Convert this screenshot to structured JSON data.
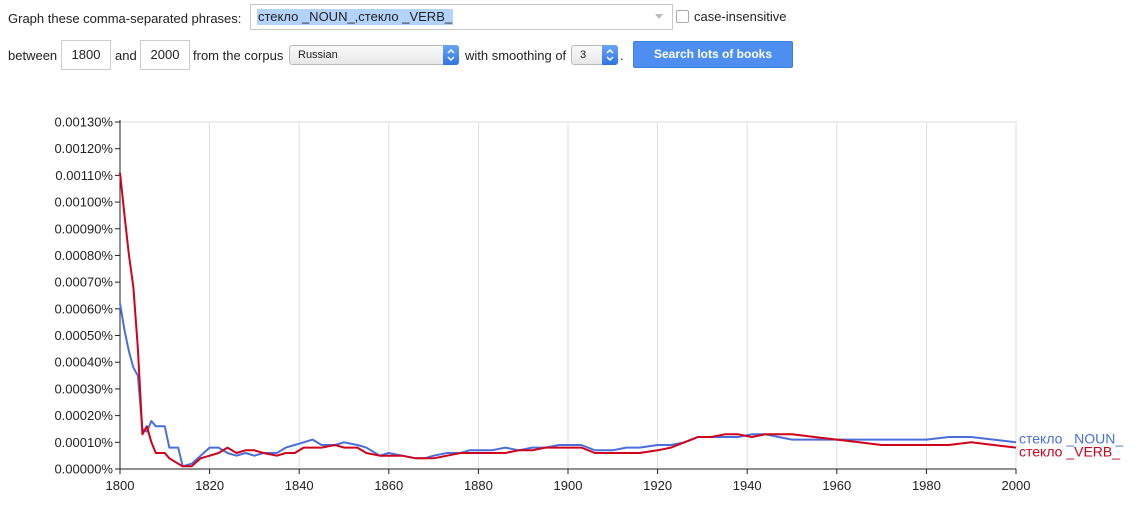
{
  "form": {
    "graph_label": "Graph these comma-separated phrases:",
    "phrases_value": "стекло _NOUN_,стекло _VERB_",
    "case_insensitive_label": "case-insensitive",
    "between_label": "between",
    "start_year": "1800",
    "and_label": "and",
    "end_year": "2000",
    "corpus_label": "from the corpus",
    "corpus_value": "Russian",
    "smoothing_label": "with smoothing of",
    "smoothing_value": "3",
    "period": ".",
    "search_button": "Search lots of books"
  },
  "colors": {
    "noun": "#4a6fdb",
    "verb": "#d0021b",
    "grid": "#dddddd",
    "button": "#4d8ef0"
  },
  "chart_data": {
    "type": "line",
    "xlim": [
      1800,
      2000
    ],
    "ylim": [
      0,
      0.0013
    ],
    "x_ticks": [
      1800,
      1820,
      1840,
      1860,
      1880,
      1900,
      1920,
      1940,
      1960,
      1980,
      2000
    ],
    "y_ticks": [
      0,
      0.0001,
      0.0002,
      0.0003,
      0.0004,
      0.0005,
      0.0006,
      0.0007,
      0.0008,
      0.0009,
      0.001,
      0.0011,
      0.0012,
      0.0013
    ],
    "y_tick_labels": [
      "0.00000%",
      "0.00010%",
      "0.00020%",
      "0.00030%",
      "0.00040%",
      "0.00050%",
      "0.00060%",
      "0.00070%",
      "0.00080%",
      "0.00090%",
      "0.00100%",
      "0.00110%",
      "0.00120%",
      "0.00130%"
    ],
    "grid": true,
    "series": [
      {
        "name": "стекло _NOUN_",
        "color": "#4a6fdb",
        "points": [
          [
            1800,
            0.00062
          ],
          [
            1801,
            0.00052
          ],
          [
            1802,
            0.00044
          ],
          [
            1803,
            0.00038
          ],
          [
            1804,
            0.00035
          ],
          [
            1805,
            0.00015
          ],
          [
            1806,
            0.00014
          ],
          [
            1807,
            0.00018
          ],
          [
            1808,
            0.00016
          ],
          [
            1810,
            0.00016
          ],
          [
            1811,
            8e-05
          ],
          [
            1813,
            8e-05
          ],
          [
            1814,
            1e-05
          ],
          [
            1816,
            2e-05
          ],
          [
            1818,
            5e-05
          ],
          [
            1820,
            8e-05
          ],
          [
            1822,
            8e-05
          ],
          [
            1824,
            6e-05
          ],
          [
            1826,
            5e-05
          ],
          [
            1828,
            6e-05
          ],
          [
            1830,
            5e-05
          ],
          [
            1832,
            6e-05
          ],
          [
            1835,
            6e-05
          ],
          [
            1837,
            8e-05
          ],
          [
            1839,
            9e-05
          ],
          [
            1841,
            0.0001
          ],
          [
            1843,
            0.00011
          ],
          [
            1845,
            9e-05
          ],
          [
            1848,
            9e-05
          ],
          [
            1850,
            0.0001
          ],
          [
            1853,
            9e-05
          ],
          [
            1855,
            8e-05
          ],
          [
            1858,
            5e-05
          ],
          [
            1860,
            6e-05
          ],
          [
            1863,
            5e-05
          ],
          [
            1866,
            4e-05
          ],
          [
            1868,
            4e-05
          ],
          [
            1870,
            5e-05
          ],
          [
            1873,
            6e-05
          ],
          [
            1876,
            6e-05
          ],
          [
            1878,
            7e-05
          ],
          [
            1880,
            7e-05
          ],
          [
            1883,
            7e-05
          ],
          [
            1886,
            8e-05
          ],
          [
            1889,
            7e-05
          ],
          [
            1892,
            8e-05
          ],
          [
            1895,
            8e-05
          ],
          [
            1898,
            9e-05
          ],
          [
            1900,
            9e-05
          ],
          [
            1903,
            9e-05
          ],
          [
            1906,
            7e-05
          ],
          [
            1910,
            7e-05
          ],
          [
            1913,
            8e-05
          ],
          [
            1916,
            8e-05
          ],
          [
            1920,
            9e-05
          ],
          [
            1923,
            9e-05
          ],
          [
            1926,
            0.0001
          ],
          [
            1929,
            0.00012
          ],
          [
            1932,
            0.00012
          ],
          [
            1935,
            0.00012
          ],
          [
            1938,
            0.00012
          ],
          [
            1941,
            0.00013
          ],
          [
            1944,
            0.00013
          ],
          [
            1947,
            0.00012
          ],
          [
            1950,
            0.00011
          ],
          [
            1955,
            0.00011
          ],
          [
            1960,
            0.00011
          ],
          [
            1965,
            0.00011
          ],
          [
            1970,
            0.00011
          ],
          [
            1975,
            0.00011
          ],
          [
            1980,
            0.00011
          ],
          [
            1985,
            0.00012
          ],
          [
            1990,
            0.00012
          ],
          [
            1995,
            0.00011
          ],
          [
            2000,
            0.0001
          ]
        ]
      },
      {
        "name": "стекло _VERB_",
        "color": "#d0021b",
        "points": [
          [
            1800,
            0.00111
          ],
          [
            1801,
            0.00095
          ],
          [
            1802,
            0.0008
          ],
          [
            1803,
            0.00068
          ],
          [
            1804,
            0.00045
          ],
          [
            1805,
            0.00013
          ],
          [
            1806,
            0.00016
          ],
          [
            1807,
            0.0001
          ],
          [
            1808,
            6e-05
          ],
          [
            1810,
            6e-05
          ],
          [
            1811,
            4e-05
          ],
          [
            1813,
            2e-05
          ],
          [
            1814,
            1e-05
          ],
          [
            1816,
            1e-05
          ],
          [
            1818,
            4e-05
          ],
          [
            1820,
            5e-05
          ],
          [
            1822,
            6e-05
          ],
          [
            1824,
            8e-05
          ],
          [
            1826,
            6e-05
          ],
          [
            1828,
            7e-05
          ],
          [
            1830,
            7e-05
          ],
          [
            1832,
            6e-05
          ],
          [
            1835,
            5e-05
          ],
          [
            1837,
            6e-05
          ],
          [
            1839,
            6e-05
          ],
          [
            1841,
            8e-05
          ],
          [
            1843,
            8e-05
          ],
          [
            1845,
            8e-05
          ],
          [
            1848,
            9e-05
          ],
          [
            1850,
            8e-05
          ],
          [
            1853,
            8e-05
          ],
          [
            1855,
            6e-05
          ],
          [
            1858,
            5e-05
          ],
          [
            1860,
            5e-05
          ],
          [
            1863,
            5e-05
          ],
          [
            1866,
            4e-05
          ],
          [
            1868,
            4e-05
          ],
          [
            1870,
            4e-05
          ],
          [
            1873,
            5e-05
          ],
          [
            1876,
            6e-05
          ],
          [
            1878,
            6e-05
          ],
          [
            1880,
            6e-05
          ],
          [
            1883,
            6e-05
          ],
          [
            1886,
            6e-05
          ],
          [
            1889,
            7e-05
          ],
          [
            1892,
            7e-05
          ],
          [
            1895,
            8e-05
          ],
          [
            1898,
            8e-05
          ],
          [
            1900,
            8e-05
          ],
          [
            1903,
            8e-05
          ],
          [
            1906,
            6e-05
          ],
          [
            1910,
            6e-05
          ],
          [
            1913,
            6e-05
          ],
          [
            1916,
            6e-05
          ],
          [
            1920,
            7e-05
          ],
          [
            1923,
            8e-05
          ],
          [
            1926,
            0.0001
          ],
          [
            1929,
            0.00012
          ],
          [
            1932,
            0.00012
          ],
          [
            1935,
            0.00013
          ],
          [
            1938,
            0.00013
          ],
          [
            1941,
            0.00012
          ],
          [
            1944,
            0.00013
          ],
          [
            1947,
            0.00013
          ],
          [
            1950,
            0.00013
          ],
          [
            1955,
            0.00012
          ],
          [
            1960,
            0.00011
          ],
          [
            1965,
            0.0001
          ],
          [
            1970,
            9e-05
          ],
          [
            1975,
            9e-05
          ],
          [
            1980,
            9e-05
          ],
          [
            1985,
            9e-05
          ],
          [
            1990,
            0.0001
          ],
          [
            1995,
            9e-05
          ],
          [
            2000,
            8e-05
          ]
        ]
      }
    ]
  }
}
